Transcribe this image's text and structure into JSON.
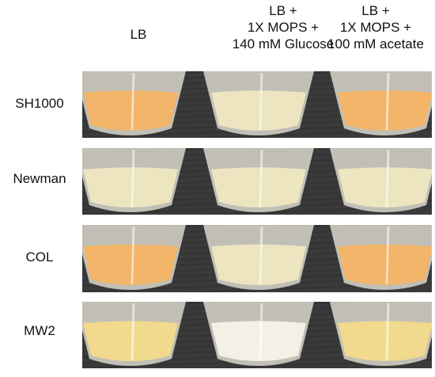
{
  "columns": [
    {
      "lines": [
        "LB"
      ]
    },
    {
      "lines": [
        "LB +",
        "1X MOPS +",
        "140 mM Glucose"
      ]
    },
    {
      "lines": [
        "LB +",
        "1X MOPS +",
        "100 mM acetate"
      ]
    }
  ],
  "rows": [
    {
      "label": "SH1000",
      "tubes": [
        "orange",
        "cream",
        "orange"
      ]
    },
    {
      "label": "Newman",
      "tubes": [
        "cream",
        "cream",
        "cream"
      ]
    },
    {
      "label": "COL",
      "tubes": [
        "orange",
        "cream",
        "orange"
      ]
    },
    {
      "label": "MW2",
      "tubes": [
        "yellow",
        "white",
        "yellow"
      ]
    }
  ],
  "colors": {
    "background": "#3a3a3a",
    "orange": "#f2b569",
    "cream": "#ece5c0",
    "yellow": "#f1d98d",
    "white": "#f3f1e6",
    "tube_wall": "#d9d7cc"
  }
}
